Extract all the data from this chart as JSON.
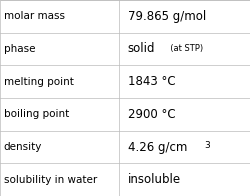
{
  "rows": [
    {
      "label": "molar mass",
      "value_parts": [
        {
          "text": "79.865 g/mol",
          "style": "normal"
        }
      ]
    },
    {
      "label": "phase",
      "value_parts": [
        {
          "text": "solid",
          "style": "normal"
        },
        {
          "text": "  (at STP)",
          "style": "small"
        }
      ]
    },
    {
      "label": "melting point",
      "value_parts": [
        {
          "text": "1843 °C",
          "style": "normal"
        }
      ]
    },
    {
      "label": "boiling point",
      "value_parts": [
        {
          "text": "2900 °C",
          "style": "normal"
        }
      ]
    },
    {
      "label": "density",
      "value_parts": [
        {
          "text": "4.26 g/cm",
          "style": "normal"
        },
        {
          "text": "3",
          "style": "super"
        }
      ]
    },
    {
      "label": "solubility in water",
      "value_parts": [
        {
          "text": "insoluble",
          "style": "normal"
        }
      ]
    }
  ],
  "bg_color": "#ffffff",
  "label_color": "#000000",
  "value_color": "#000000",
  "grid_color": "#bbbbbb",
  "label_fontsize": 7.5,
  "value_fontsize": 8.5,
  "small_fontsize": 6.0,
  "super_fontsize": 6.5,
  "col_split": 0.475
}
